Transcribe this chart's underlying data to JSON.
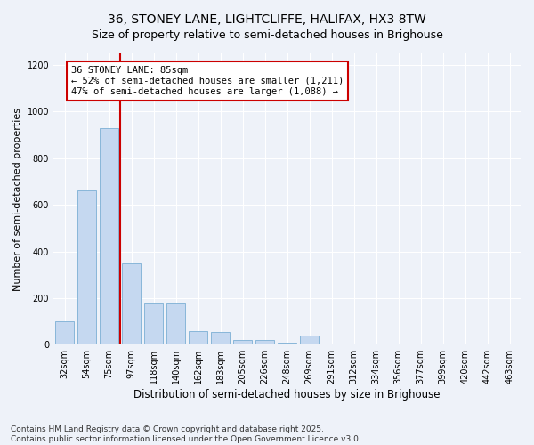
{
  "title_line1": "36, STONEY LANE, LIGHTCLIFFE, HALIFAX, HX3 8TW",
  "title_line2": "Size of property relative to semi-detached houses in Brighouse",
  "xlabel": "Distribution of semi-detached houses by size in Brighouse",
  "ylabel": "Number of semi-detached properties",
  "categories": [
    "32sqm",
    "54sqm",
    "75sqm",
    "97sqm",
    "118sqm",
    "140sqm",
    "162sqm",
    "183sqm",
    "205sqm",
    "226sqm",
    "248sqm",
    "269sqm",
    "291sqm",
    "312sqm",
    "334sqm",
    "356sqm",
    "377sqm",
    "399sqm",
    "420sqm",
    "442sqm",
    "463sqm"
  ],
  "values": [
    100,
    660,
    930,
    350,
    175,
    175,
    60,
    55,
    20,
    20,
    10,
    40,
    5,
    3,
    2,
    2,
    1,
    1,
    0,
    0,
    0
  ],
  "bar_color": "#c5d8f0",
  "bar_edge_color": "#7bafd4",
  "vline_x": 2.5,
  "vline_color": "#cc0000",
  "annotation_text": "36 STONEY LANE: 85sqm\n← 52% of semi-detached houses are smaller (1,211)\n47% of semi-detached houses are larger (1,088) →",
  "annotation_box_color": "#ffffff",
  "annotation_box_edge_color": "#cc0000",
  "ylim": [
    0,
    1250
  ],
  "yticks": [
    0,
    200,
    400,
    600,
    800,
    1000,
    1200
  ],
  "background_color": "#eef2f9",
  "plot_background_color": "#eef2f9",
  "footer_line1": "Contains HM Land Registry data © Crown copyright and database right 2025.",
  "footer_line2": "Contains public sector information licensed under the Open Government Licence v3.0.",
  "title_fontsize": 10,
  "subtitle_fontsize": 9,
  "xlabel_fontsize": 8.5,
  "ylabel_fontsize": 8,
  "tick_fontsize": 7,
  "footer_fontsize": 6.5,
  "annotation_fontsize": 7.5
}
